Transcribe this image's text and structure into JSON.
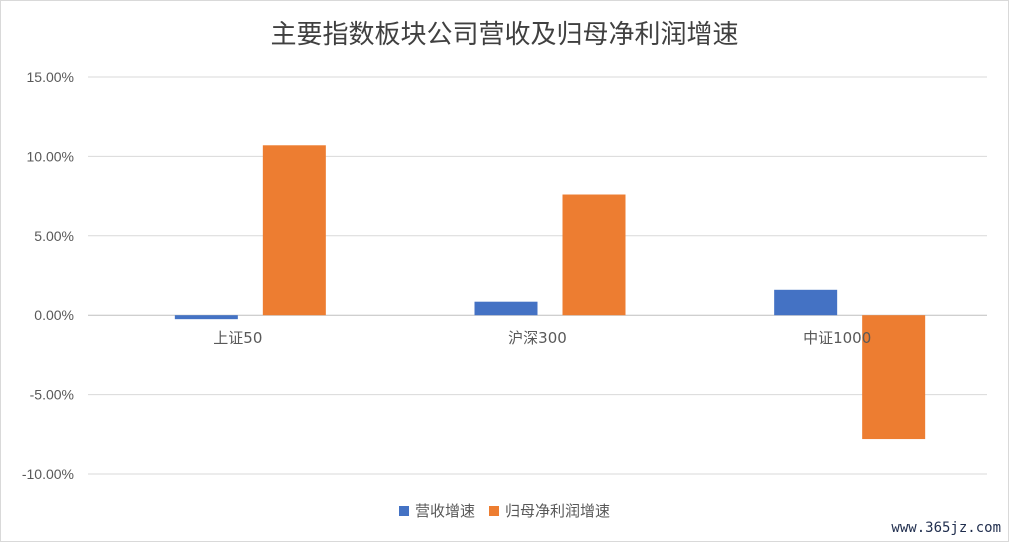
{
  "watermark": "www.365jz.com",
  "chart_data": {
    "type": "bar",
    "title": "主要指数板块公司营收及归母净利润增速",
    "categories": [
      "上证50",
      "沪深300",
      "中证1000"
    ],
    "series": [
      {
        "name": "营收增速",
        "color": "#4472c4",
        "values": [
          -0.25,
          0.85,
          1.6
        ]
      },
      {
        "name": "归母净利润增速",
        "color": "#ed7d31",
        "values": [
          10.7,
          7.6,
          -7.8
        ]
      }
    ],
    "yticks": [
      "15.00%",
      "10.00%",
      "5.00%",
      "0.00%",
      "-5.00%",
      "-10.00%"
    ],
    "ylim": [
      -10,
      15
    ],
    "grid": true,
    "legend": "bottom"
  }
}
